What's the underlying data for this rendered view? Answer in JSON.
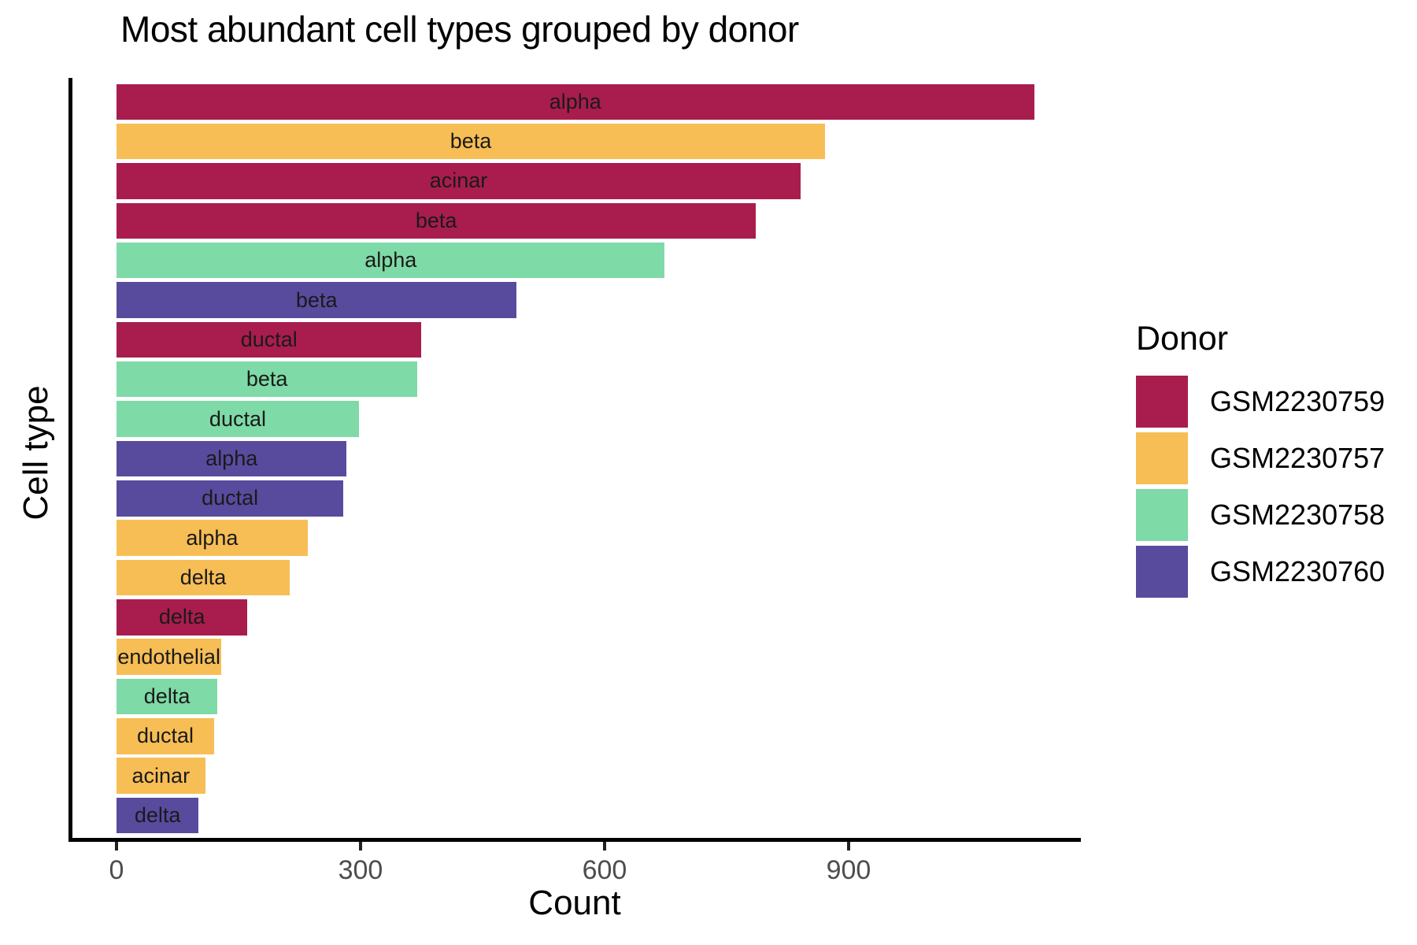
{
  "title": "Most abundant cell types grouped by donor",
  "axes": {
    "x_label": "Count",
    "y_label": "Cell type"
  },
  "legend": {
    "title": "Donor",
    "items": [
      {
        "label": "GSM2230759",
        "color": "#A81D4D"
      },
      {
        "label": "GSM2230757",
        "color": "#F7BE56"
      },
      {
        "label": "GSM2230758",
        "color": "#7EDAA6"
      },
      {
        "label": "GSM2230760",
        "color": "#584B9E"
      }
    ]
  },
  "chart_data": {
    "type": "bar",
    "orientation": "horizontal",
    "title": "Most abundant cell types grouped by donor",
    "xlabel": "Count",
    "ylabel": "Cell type",
    "xlim": [
      0,
      1130
    ],
    "x_ticks": [
      0,
      300,
      600,
      900
    ],
    "grid": false,
    "legend_position": "right",
    "legend_title": "Donor",
    "series_colors": {
      "GSM2230759": "#A81D4D",
      "GSM2230757": "#F7BE56",
      "GSM2230758": "#7EDAA6",
      "GSM2230760": "#584B9E"
    },
    "bars": [
      {
        "cell_type": "alpha",
        "donor": "GSM2230759",
        "count": 1128
      },
      {
        "cell_type": "beta",
        "donor": "GSM2230757",
        "count": 871
      },
      {
        "cell_type": "acinar",
        "donor": "GSM2230759",
        "count": 841
      },
      {
        "cell_type": "beta",
        "donor": "GSM2230759",
        "count": 786
      },
      {
        "cell_type": "alpha",
        "donor": "GSM2230758",
        "count": 674
      },
      {
        "cell_type": "beta",
        "donor": "GSM2230760",
        "count": 492
      },
      {
        "cell_type": "ductal",
        "donor": "GSM2230759",
        "count": 375
      },
      {
        "cell_type": "beta",
        "donor": "GSM2230758",
        "count": 370
      },
      {
        "cell_type": "ductal",
        "donor": "GSM2230758",
        "count": 298
      },
      {
        "cell_type": "alpha",
        "donor": "GSM2230760",
        "count": 283
      },
      {
        "cell_type": "ductal",
        "donor": "GSM2230760",
        "count": 279
      },
      {
        "cell_type": "alpha",
        "donor": "GSM2230757",
        "count": 235
      },
      {
        "cell_type": "delta",
        "donor": "GSM2230757",
        "count": 213
      },
      {
        "cell_type": "delta",
        "donor": "GSM2230759",
        "count": 161
      },
      {
        "cell_type": "endothelial",
        "donor": "GSM2230757",
        "count": 129
      },
      {
        "cell_type": "delta",
        "donor": "GSM2230758",
        "count": 124
      },
      {
        "cell_type": "ductal",
        "donor": "GSM2230757",
        "count": 120
      },
      {
        "cell_type": "acinar",
        "donor": "GSM2230757",
        "count": 109
      },
      {
        "cell_type": "delta",
        "donor": "GSM2230760",
        "count": 101
      }
    ]
  }
}
